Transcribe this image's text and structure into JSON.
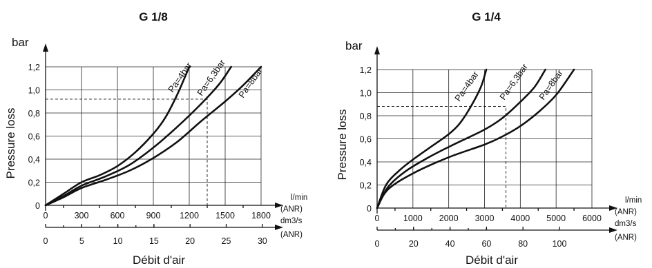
{
  "chart_data": [
    {
      "type": "line",
      "title": "G 1/8",
      "y_unit": "bar",
      "ylabel": "Pressure loss",
      "xlabel": "Débit d'air",
      "x_unit_primary": "l/min",
      "x_unit_primary_sub": "(ANR)",
      "x_unit_secondary": "dm3/s",
      "x_unit_secondary_sub": "(ANR)",
      "ylim": [
        0,
        1.2
      ],
      "xlim": [
        0,
        1800
      ],
      "x_ticks": [
        "0",
        "300",
        "600",
        "900",
        "1200",
        "1500",
        "1800"
      ],
      "x2_ticks": [
        "0",
        "5",
        "10",
        "15",
        "20",
        "25",
        "30"
      ],
      "y_ticks": [
        "0",
        "0,2",
        "0,4",
        "0,6",
        "0,8",
        "1,0",
        "1,2"
      ],
      "grid": true,
      "series": [
        {
          "name": "Pa=4bar",
          "points": [
            [
              0,
              0
            ],
            [
              150,
              0.1
            ],
            [
              300,
              0.2
            ],
            [
              450,
              0.26
            ],
            [
              600,
              0.34
            ],
            [
              750,
              0.46
            ],
            [
              900,
              0.62
            ],
            [
              1000,
              0.76
            ],
            [
              1100,
              0.96
            ],
            [
              1200,
              1.2
            ]
          ]
        },
        {
          "name": "Pa=6,3bar",
          "points": [
            [
              0,
              0
            ],
            [
              150,
              0.08
            ],
            [
              300,
              0.17
            ],
            [
              500,
              0.25
            ],
            [
              700,
              0.35
            ],
            [
              900,
              0.5
            ],
            [
              1100,
              0.68
            ],
            [
              1300,
              0.88
            ],
            [
              1450,
              1.05
            ],
            [
              1550,
              1.2
            ]
          ]
        },
        {
          "name": "Pa=8bar",
          "points": [
            [
              0,
              0
            ],
            [
              150,
              0.07
            ],
            [
              300,
              0.15
            ],
            [
              500,
              0.22
            ],
            [
              700,
              0.3
            ],
            [
              900,
              0.41
            ],
            [
              1100,
              0.55
            ],
            [
              1300,
              0.73
            ],
            [
              1500,
              0.9
            ],
            [
              1650,
              1.04
            ],
            [
              1800,
              1.2
            ]
          ]
        }
      ],
      "reference_point": {
        "x": 1350,
        "y": 0.92
      }
    },
    {
      "type": "line",
      "title": "G 1/4",
      "y_unit": "bar",
      "ylabel": "Pressure loss",
      "xlabel": "Débit d'air",
      "x_unit_primary": "l/min",
      "x_unit_primary_sub": "(ANR)",
      "x_unit_secondary": "dm3/s",
      "x_unit_secondary_sub": "(ANR)",
      "ylim": [
        0,
        1.2
      ],
      "xlim": [
        0,
        6000
      ],
      "x_ticks": [
        "0",
        "1000",
        "2000",
        "3000",
        "4000",
        "5000",
        "6000"
      ],
      "x2_ticks": [
        "0",
        "20",
        "40",
        "60",
        "80",
        "100"
      ],
      "y_ticks": [
        "0",
        "0,2",
        "0,4",
        "0,6",
        "0,8",
        "1,0",
        "1,2"
      ],
      "grid": true,
      "series": [
        {
          "name": "Pa=4bar",
          "points": [
            [
              0,
              0
            ],
            [
              250,
              0.2
            ],
            [
              600,
              0.32
            ],
            [
              1000,
              0.42
            ],
            [
              1500,
              0.53
            ],
            [
              2000,
              0.64
            ],
            [
              2300,
              0.73
            ],
            [
              2600,
              0.87
            ],
            [
              2900,
              1.05
            ],
            [
              3050,
              1.2
            ]
          ]
        },
        {
          "name": "Pa=6,3bar",
          "points": [
            [
              0,
              0
            ],
            [
              300,
              0.18
            ],
            [
              800,
              0.32
            ],
            [
              1500,
              0.45
            ],
            [
              2200,
              0.56
            ],
            [
              3000,
              0.68
            ],
            [
              3500,
              0.78
            ],
            [
              4000,
              0.92
            ],
            [
              4400,
              1.05
            ],
            [
              4700,
              1.2
            ]
          ]
        },
        {
          "name": "Pa=8bar",
          "points": [
            [
              0,
              0
            ],
            [
              300,
              0.16
            ],
            [
              1000,
              0.3
            ],
            [
              2000,
              0.44
            ],
            [
              3000,
              0.55
            ],
            [
              3500,
              0.62
            ],
            [
              4000,
              0.71
            ],
            [
              4500,
              0.83
            ],
            [
              5000,
              0.98
            ],
            [
              5500,
              1.2
            ]
          ]
        }
      ],
      "reference_point": {
        "x": 3600,
        "y": 0.88
      }
    }
  ]
}
